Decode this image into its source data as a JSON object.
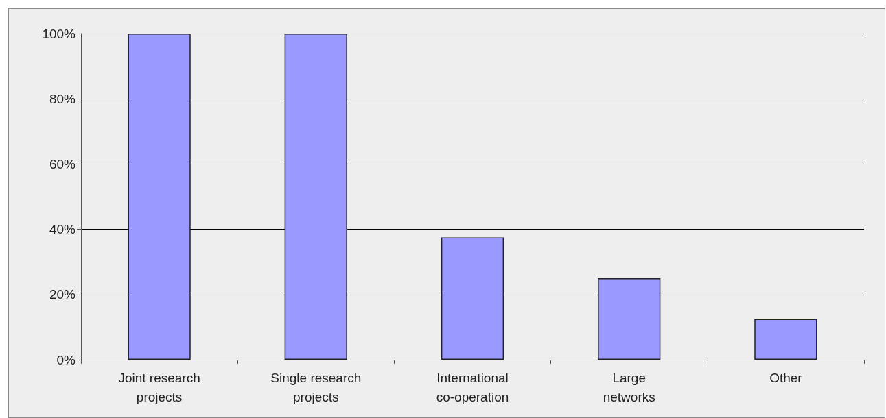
{
  "chart_data": {
    "type": "bar",
    "categories": [
      "Joint research projects",
      "Single research projects",
      "International co-operation",
      "Large networks",
      "Other"
    ],
    "values": [
      100,
      100,
      37.5,
      25,
      12.5
    ],
    "color": "#9999ff",
    "ylim": [
      0,
      100
    ],
    "yticks": [
      {
        "value": 0,
        "label": "0%"
      },
      {
        "value": 20,
        "label": "20%"
      },
      {
        "value": 40,
        "label": "40%"
      },
      {
        "value": 60,
        "label": "60%"
      },
      {
        "value": 80,
        "label": "80%"
      },
      {
        "value": 100,
        "label": "100%"
      }
    ],
    "grid": "y"
  }
}
